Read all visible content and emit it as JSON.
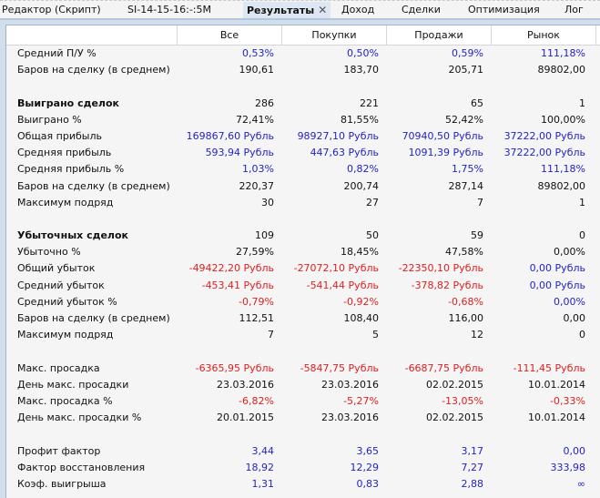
{
  "tabs": [
    {
      "label": "Редактор (Скрипт)",
      "active": false
    },
    {
      "label": "SI-14-15-16:-:5M",
      "active": false
    },
    {
      "label": "Результаты",
      "active": true,
      "closable": true
    },
    {
      "label": "Доход",
      "active": false
    },
    {
      "label": "Сделки",
      "active": false
    },
    {
      "label": "Оптимизация",
      "active": false
    },
    {
      "label": "Лог",
      "active": false
    }
  ],
  "close_glyph": "✕",
  "columns": [
    "Все",
    "Покупки",
    "Продажи",
    "Рынок"
  ],
  "colors": {
    "positive": "#2323c8",
    "negative": "#e02020",
    "neutral": "#111111",
    "active_tab": "#dde7f3"
  },
  "rows": [
    {
      "label": "Средний П/У %",
      "values": [
        "0,53%",
        "0,50%",
        "0,59%",
        "111,18%"
      ],
      "colors": [
        "blue",
        "blue",
        "blue",
        "blue"
      ]
    },
    {
      "label": "Баров на сделку (в среднем)",
      "values": [
        "190,61",
        "183,70",
        "205,71",
        "89802,00"
      ],
      "colors": [
        "black",
        "black",
        "black",
        "black"
      ]
    },
    {
      "spacer": true
    },
    {
      "label": "Выиграно сделок",
      "bold": true,
      "values": [
        "286",
        "221",
        "65",
        "1"
      ],
      "colors": [
        "black",
        "black",
        "black",
        "black"
      ]
    },
    {
      "label": "Выиграно %",
      "values": [
        "72,41%",
        "81,55%",
        "52,42%",
        "100,00%"
      ],
      "colors": [
        "black",
        "black",
        "black",
        "black"
      ]
    },
    {
      "label": "Общая прибыль",
      "values": [
        "169867,60 Рубль",
        "98927,10 Рубль",
        "70940,50 Рубль",
        "37222,00 Рубль"
      ],
      "colors": [
        "blue",
        "blue",
        "blue",
        "blue"
      ]
    },
    {
      "label": "Средняя прибыль",
      "values": [
        "593,94 Рубль",
        "447,63 Рубль",
        "1091,39 Рубль",
        "37222,00 Рубль"
      ],
      "colors": [
        "blue",
        "blue",
        "blue",
        "blue"
      ]
    },
    {
      "label": "Средняя прибыль %",
      "values": [
        "1,03%",
        "0,82%",
        "1,75%",
        "111,18%"
      ],
      "colors": [
        "blue",
        "blue",
        "blue",
        "blue"
      ]
    },
    {
      "label": "Баров на сделку (в среднем)",
      "values": [
        "220,37",
        "200,74",
        "287,14",
        "89802,00"
      ],
      "colors": [
        "black",
        "black",
        "black",
        "black"
      ]
    },
    {
      "label": "Максимум подряд",
      "values": [
        "30",
        "27",
        "7",
        "1"
      ],
      "colors": [
        "black",
        "black",
        "black",
        "black"
      ]
    },
    {
      "spacer": true
    },
    {
      "label": "Убыточных сделок",
      "bold": true,
      "values": [
        "109",
        "50",
        "59",
        "0"
      ],
      "colors": [
        "black",
        "black",
        "black",
        "black"
      ]
    },
    {
      "label": "Убыточно %",
      "values": [
        "27,59%",
        "18,45%",
        "47,58%",
        "0,00%"
      ],
      "colors": [
        "black",
        "black",
        "black",
        "black"
      ]
    },
    {
      "label": "Общий убыток",
      "values": [
        "-49422,20 Рубль",
        "-27072,10 Рубль",
        "-22350,10 Рубль",
        "0,00 Рубль"
      ],
      "colors": [
        "red",
        "red",
        "red",
        "blue"
      ]
    },
    {
      "label": "Средний убыток",
      "values": [
        "-453,41 Рубль",
        "-541,44 Рубль",
        "-378,82 Рубль",
        "0,00 Рубль"
      ],
      "colors": [
        "red",
        "red",
        "red",
        "blue"
      ]
    },
    {
      "label": "Средний убыток %",
      "values": [
        "-0,79%",
        "-0,92%",
        "-0,68%",
        "0,00%"
      ],
      "colors": [
        "red",
        "red",
        "red",
        "blue"
      ]
    },
    {
      "label": "Баров на сделку (в среднем)",
      "values": [
        "112,51",
        "108,40",
        "116,00",
        "0,00"
      ],
      "colors": [
        "black",
        "black",
        "black",
        "black"
      ]
    },
    {
      "label": "Максимум подряд",
      "values": [
        "7",
        "5",
        "12",
        "0"
      ],
      "colors": [
        "black",
        "black",
        "black",
        "black"
      ]
    },
    {
      "spacer": true
    },
    {
      "label": "Макс. просадка",
      "values": [
        "-6365,95 Рубль",
        "-5847,75 Рубль",
        "-6687,75 Рубль",
        "-111,45 Рубль"
      ],
      "colors": [
        "red",
        "red",
        "red",
        "red"
      ]
    },
    {
      "label": "День макс. просадки",
      "values": [
        "23.03.2016",
        "23.03.2016",
        "02.02.2015",
        "10.01.2014"
      ],
      "colors": [
        "black",
        "black",
        "black",
        "black"
      ]
    },
    {
      "label": "Макс. просадка %",
      "values": [
        "-6,82%",
        "-5,27%",
        "-13,05%",
        "-0,33%"
      ],
      "colors": [
        "red",
        "red",
        "red",
        "red"
      ]
    },
    {
      "label": "День макс. просадки %",
      "values": [
        "20.01.2015",
        "23.03.2016",
        "02.02.2015",
        "10.01.2014"
      ],
      "colors": [
        "black",
        "black",
        "black",
        "black"
      ]
    },
    {
      "spacer": true
    },
    {
      "label": "Профит фактор",
      "values": [
        "3,44",
        "3,65",
        "3,17",
        "0,00"
      ],
      "colors": [
        "blue",
        "blue",
        "blue",
        "blue"
      ]
    },
    {
      "label": "Фактор восстановления",
      "values": [
        "18,92",
        "12,29",
        "7,27",
        "333,98"
      ],
      "colors": [
        "blue",
        "blue",
        "blue",
        "blue"
      ]
    },
    {
      "label": "Коэф. выигрыша",
      "values": [
        "1,31",
        "0,83",
        "2,88",
        "∞"
      ],
      "colors": [
        "blue",
        "blue",
        "blue",
        "blue"
      ]
    }
  ]
}
